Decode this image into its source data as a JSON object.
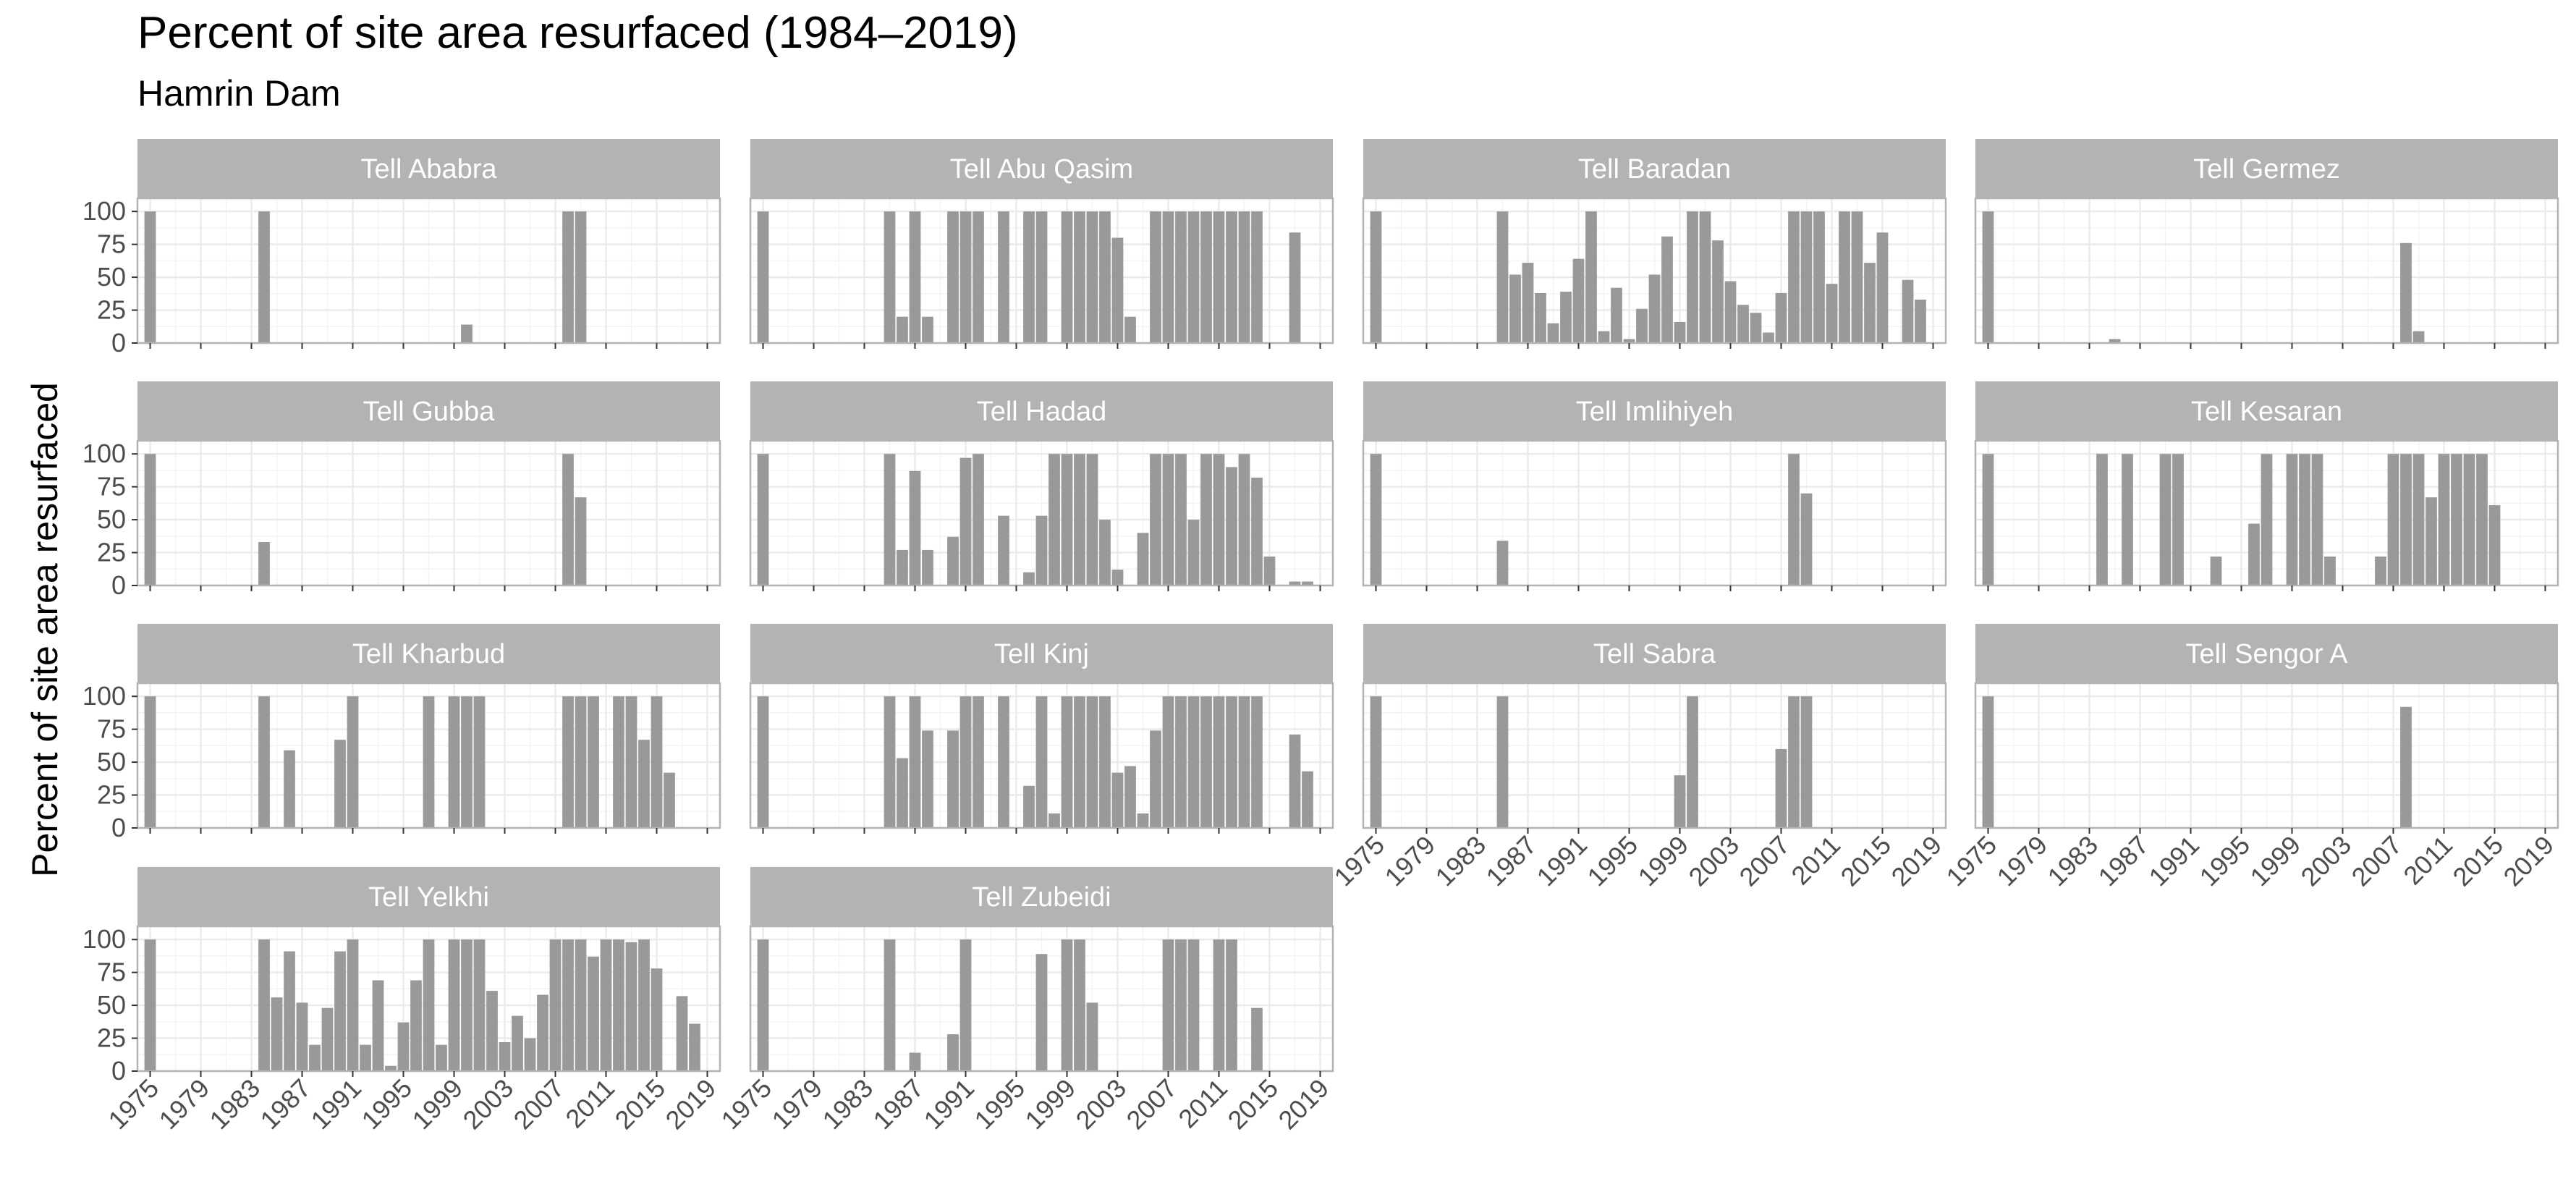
{
  "title": "Percent of site area resurfaced (1984–2019)",
  "subtitle": "Hamrin Dam",
  "ylabel": "Percent of site area resurfaced",
  "colors": {
    "bar": "#999999",
    "strip": "#b3b3b3",
    "strip_text": "#ffffff",
    "grid": "#ebebeb",
    "panel_border": "#b3b3b3",
    "tick_text": "#4d4d4d"
  },
  "chart_data": {
    "type": "bar",
    "layout": "facet_wrap",
    "ncol": 4,
    "x_range": [
      1974,
      2020
    ],
    "xticks": [
      1975,
      1979,
      1983,
      1987,
      1991,
      1995,
      1999,
      2003,
      2007,
      2011,
      2015,
      2019
    ],
    "x_tick_labels": [
      "1975",
      "1979",
      "1983",
      "1987",
      "1991",
      "1995",
      "1999",
      "2003",
      "2007",
      "2011",
      "2015",
      "2019"
    ],
    "ylim": [
      0,
      110
    ],
    "yticks": [
      0,
      25,
      50,
      75,
      100
    ],
    "y_tick_labels": [
      "0",
      "25",
      "50",
      "75",
      "100"
    ],
    "panels": [
      {
        "name": "Tell Ababra",
        "years": [
          1975,
          1984,
          2000,
          2008,
          2009
        ],
        "values": [
          100,
          100,
          14,
          100,
          100
        ]
      },
      {
        "name": "Tell Abu Qasim",
        "years": [
          1975,
          1985,
          1986,
          1987,
          1988,
          1990,
          1991,
          1992,
          1994,
          1996,
          1997,
          1999,
          2000,
          2001,
          2002,
          2003,
          2004,
          2006,
          2007,
          2008,
          2009,
          2010,
          2011,
          2012,
          2013,
          2014,
          2017
        ],
        "values": [
          100,
          100,
          20,
          100,
          20,
          100,
          100,
          100,
          100,
          100,
          100,
          100,
          100,
          100,
          100,
          80,
          20,
          100,
          100,
          100,
          100,
          100,
          100,
          100,
          100,
          100,
          84
        ]
      },
      {
        "name": "Tell Baradan",
        "years": [
          1975,
          1985,
          1986,
          1987,
          1988,
          1989,
          1990,
          1991,
          1992,
          1993,
          1994,
          1995,
          1996,
          1997,
          1998,
          1999,
          2000,
          2001,
          2002,
          2003,
          2004,
          2005,
          2006,
          2007,
          2008,
          2009,
          2010,
          2011,
          2012,
          2013,
          2014,
          2015,
          2017,
          2018
        ],
        "values": [
          100,
          100,
          52,
          61,
          38,
          15,
          39,
          64,
          100,
          9,
          42,
          3,
          26,
          52,
          81,
          16,
          100,
          100,
          78,
          47,
          29,
          23,
          8,
          38,
          100,
          100,
          100,
          45,
          100,
          100,
          61,
          84,
          48,
          33
        ]
      },
      {
        "name": "Tell Germez",
        "years": [
          1975,
          1985,
          2008,
          2009
        ],
        "values": [
          100,
          3,
          76,
          9
        ]
      },
      {
        "name": "Tell Gubba",
        "years": [
          1975,
          1984,
          2008,
          2009
        ],
        "values": [
          100,
          33,
          100,
          67
        ]
      },
      {
        "name": "Tell Hadad",
        "years": [
          1975,
          1985,
          1986,
          1987,
          1988,
          1990,
          1991,
          1992,
          1994,
          1996,
          1997,
          1998,
          1999,
          2000,
          2001,
          2002,
          2003,
          2005,
          2006,
          2007,
          2008,
          2009,
          2010,
          2011,
          2012,
          2013,
          2014,
          2015,
          2017,
          2018
        ],
        "values": [
          100,
          100,
          27,
          87,
          27,
          37,
          97,
          100,
          53,
          10,
          53,
          100,
          100,
          100,
          100,
          50,
          12,
          40,
          100,
          100,
          100,
          50,
          100,
          100,
          90,
          100,
          82,
          22,
          3,
          3
        ]
      },
      {
        "name": "Tell Imlihiyeh",
        "years": [
          1975,
          1985,
          2008,
          2009
        ],
        "values": [
          100,
          34,
          100,
          70
        ]
      },
      {
        "name": "Tell Kesaran",
        "years": [
          1975,
          1984,
          1986,
          1989,
          1990,
          1993,
          1996,
          1997,
          1999,
          2000,
          2001,
          2002,
          2006,
          2007,
          2008,
          2009,
          2010,
          2011,
          2012,
          2013,
          2014,
          2015
        ],
        "values": [
          100,
          100,
          100,
          100,
          100,
          22,
          47,
          100,
          100,
          100,
          100,
          22,
          22,
          100,
          100,
          100,
          67,
          100,
          100,
          100,
          100,
          61
        ]
      },
      {
        "name": "Tell Kharbud",
        "years": [
          1975,
          1984,
          1986,
          1990,
          1991,
          1997,
          1999,
          2000,
          2001,
          2008,
          2009,
          2010,
          2012,
          2013,
          2014,
          2015,
          2016
        ],
        "values": [
          100,
          100,
          59,
          67,
          100,
          100,
          100,
          100,
          100,
          100,
          100,
          100,
          100,
          100,
          67,
          100,
          42
        ]
      },
      {
        "name": "Tell Kinj",
        "years": [
          1975,
          1985,
          1986,
          1987,
          1988,
          1990,
          1991,
          1992,
          1994,
          1996,
          1997,
          1998,
          1999,
          2000,
          2001,
          2002,
          2003,
          2004,
          2005,
          2006,
          2007,
          2008,
          2009,
          2010,
          2011,
          2012,
          2013,
          2014,
          2017,
          2018
        ],
        "values": [
          100,
          100,
          53,
          100,
          74,
          74,
          100,
          100,
          100,
          32,
          100,
          11,
          100,
          100,
          100,
          100,
          42,
          47,
          11,
          74,
          100,
          100,
          100,
          100,
          100,
          100,
          100,
          100,
          71,
          43
        ]
      },
      {
        "name": "Tell Sabra",
        "years": [
          1975,
          1985,
          1999,
          2000,
          2007,
          2008,
          2009
        ],
        "values": [
          100,
          100,
          40,
          100,
          60,
          100,
          100
        ]
      },
      {
        "name": "Tell Sengor A",
        "years": [
          1975,
          2008
        ],
        "values": [
          100,
          92
        ]
      },
      {
        "name": "Tell Yelkhi",
        "years": [
          1975,
          1984,
          1985,
          1986,
          1987,
          1988,
          1989,
          1990,
          1991,
          1992,
          1993,
          1994,
          1995,
          1996,
          1997,
          1998,
          1999,
          2000,
          2001,
          2002,
          2003,
          2004,
          2005,
          2006,
          2007,
          2008,
          2009,
          2010,
          2011,
          2012,
          2013,
          2014,
          2015,
          2017,
          2018
        ],
        "values": [
          100,
          100,
          56,
          91,
          52,
          20,
          48,
          91,
          100,
          20,
          69,
          4,
          37,
          69,
          100,
          20,
          100,
          100,
          100,
          61,
          22,
          42,
          25,
          58,
          100,
          100,
          100,
          87,
          100,
          100,
          98,
          100,
          78,
          57,
          36
        ]
      },
      {
        "name": "Tell Zubeidi",
        "years": [
          1975,
          1985,
          1987,
          1990,
          1991,
          1997,
          1999,
          2000,
          2001,
          2007,
          2008,
          2009,
          2011,
          2012,
          2014
        ],
        "values": [
          100,
          100,
          14,
          28,
          100,
          89,
          100,
          100,
          52,
          100,
          100,
          100,
          100,
          100,
          48
        ]
      }
    ]
  }
}
